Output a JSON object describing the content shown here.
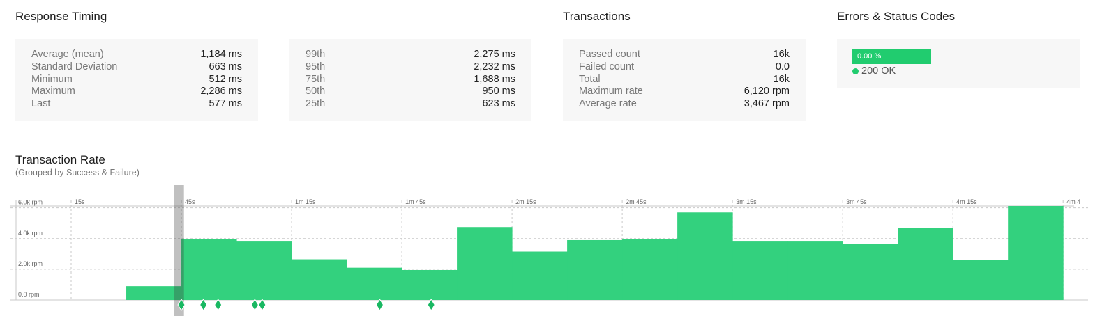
{
  "response_timing": {
    "title": "Response Timing",
    "stats": [
      {
        "label": "Average (mean)",
        "value": "1,184 ms"
      },
      {
        "label": "Standard Deviation",
        "value": "663 ms"
      },
      {
        "label": "Minimum",
        "value": "512 ms"
      },
      {
        "label": "Maximum",
        "value": "2,286 ms"
      },
      {
        "label": "Last",
        "value": "577 ms"
      }
    ],
    "percentiles": [
      {
        "label": "99th",
        "value": "2,275 ms"
      },
      {
        "label": "95th",
        "value": "2,232 ms"
      },
      {
        "label": "75th",
        "value": "1,688 ms"
      },
      {
        "label": "50th",
        "value": "950 ms"
      },
      {
        "label": "25th",
        "value": "623 ms"
      }
    ]
  },
  "transactions": {
    "title": "Transactions",
    "stats": [
      {
        "label": "Passed count",
        "value": "16k"
      },
      {
        "label": "Failed count",
        "value": "0.0"
      },
      {
        "label": "Total",
        "value": "16k"
      },
      {
        "label": "Maximum rate",
        "value": "6,120 rpm"
      },
      {
        "label": "Average rate",
        "value": "3,467 rpm"
      }
    ]
  },
  "errors": {
    "title": "Errors & Status Codes",
    "error_pct": "0.00 %",
    "error_fraction": 0,
    "legend_label": "200 OK",
    "legend_color": "#21cc6f"
  },
  "transaction_rate": {
    "title": "Transaction Rate",
    "subtitle": "(Grouped by Success & Failure)"
  },
  "chart_data": {
    "type": "area",
    "title": "Transaction Rate",
    "subtitle": "(Grouped by Success & Failure)",
    "x_unit": "seconds",
    "x_ticks": [
      {
        "t": 15,
        "label": "15s"
      },
      {
        "t": 45,
        "label": "45s"
      },
      {
        "t": 75,
        "label": "1m 15s"
      },
      {
        "t": 105,
        "label": "1m 45s"
      },
      {
        "t": 135,
        "label": "2m 15s"
      },
      {
        "t": 165,
        "label": "2m 45s"
      },
      {
        "t": 195,
        "label": "3m 15s"
      },
      {
        "t": 225,
        "label": "3m 45s"
      },
      {
        "t": 255,
        "label": "4m 15s"
      },
      {
        "t": 285,
        "label": "4m 4"
      }
    ],
    "y_ticks": [
      {
        "v": 0,
        "label": "0.0 rpm"
      },
      {
        "v": 2000,
        "label": "2.0k rpm"
      },
      {
        "v": 4000,
        "label": "4.0k rpm"
      },
      {
        "v": 6000,
        "label": "6.0k rpm"
      }
    ],
    "xlim": [
      0,
      288
    ],
    "ylim": [
      0,
      6120
    ],
    "series": [
      {
        "name": "200 OK",
        "color": "#33d17e",
        "step_start": 30,
        "step_width": 15,
        "values": [
          900,
          3950,
          3850,
          2650,
          2100,
          1950,
          4750,
          3150,
          3900,
          3950,
          5700,
          3850,
          3850,
          3650,
          4700,
          2600,
          6120
        ]
      }
    ],
    "highlight_window": [
      43,
      45.7
    ],
    "markers": [
      45,
      51,
      55,
      65,
      67,
      99,
      113
    ],
    "grid": true
  }
}
